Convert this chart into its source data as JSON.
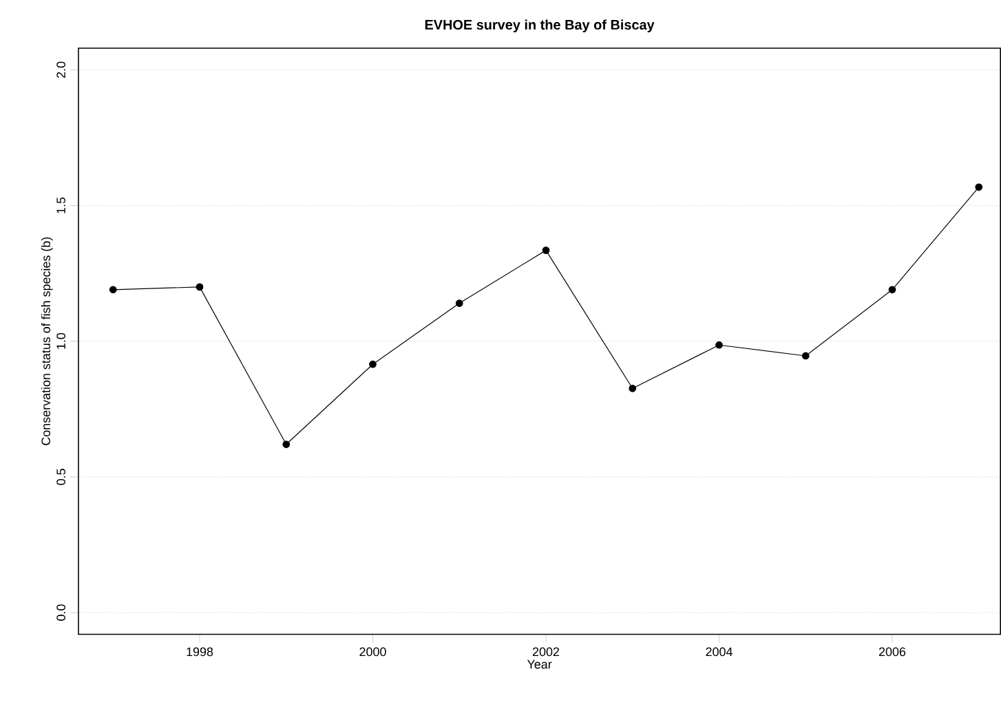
{
  "chart_data": {
    "type": "line",
    "title": "EVHOE survey in the Bay of Biscay",
    "xlabel": "Year",
    "ylabel": "Conservation status of fish species (b)",
    "x": [
      1997,
      1998,
      1999,
      2000,
      2001,
      2002,
      2003,
      2004,
      2005,
      2006,
      2007
    ],
    "series": [
      {
        "color": "#000000",
        "values": [
          1.19,
          1.2,
          0.62,
          0.915,
          1.14,
          1.335,
          0.826,
          0.986,
          0.946,
          1.19,
          1.568
        ]
      }
    ],
    "xlim": [
      1996.6,
      2007.25
    ],
    "ylim": [
      -0.08,
      2.08
    ],
    "xticks": [
      1998,
      2000,
      2002,
      2004,
      2006
    ],
    "yticks": [
      {
        "value": 0,
        "label": "0.0"
      },
      {
        "value": 0.5,
        "label": "0.5"
      },
      {
        "value": 1,
        "label": "1.0"
      },
      {
        "value": 1.5,
        "label": "1.5"
      },
      {
        "value": 2,
        "label": "2.0"
      }
    ],
    "grid": "y",
    "marker": "circle",
    "line_style": "solid"
  }
}
